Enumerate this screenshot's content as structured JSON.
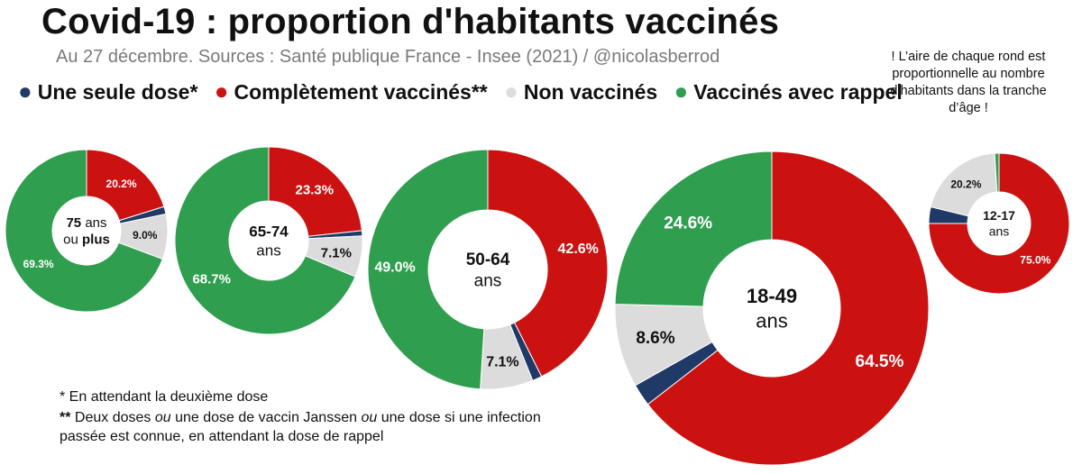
{
  "title": "Covid-19 : proportion d'habitants vaccinés",
  "subtitle": "Au 27 décembre. Sources : Santé publique France - Insee (2021) / @nicolasberrod",
  "note": "! L’aire de chaque rond est proportionnelle au nombre d’habitants dans la tranche d’âge !",
  "colors": {
    "one_dose": "#1f3a66",
    "complete": "#cc1111",
    "non_vaccinated": "#dcdcdc",
    "booster": "#2f9e4f"
  },
  "legend": [
    {
      "key": "one_dose",
      "label": "Une seule dose*",
      "color": "#1f3a66"
    },
    {
      "key": "complete",
      "label": "Complètement vaccinés**",
      "color": "#cc1111"
    },
    {
      "key": "non_vaccinated",
      "label": "Non vaccinés",
      "color": "#dcdcdc"
    },
    {
      "key": "booster",
      "label": "Vaccinés avec rappel",
      "color": "#2f9e4f"
    }
  ],
  "footnotes": {
    "one": "* En attendant la deuxième dose",
    "two_marker": "**",
    "two_part1": " Deux doses ",
    "two_ou1": "ou",
    "two_part2": " une dose de vaccin Janssen ",
    "two_ou2": "ou",
    "two_part3": " une dose si une infection passée est connue, en attendant la dose de rappel"
  },
  "chart_data": {
    "type": "pie",
    "variant": "donut",
    "series_order": [
      "complete",
      "one_dose",
      "non_vaccinated",
      "booster"
    ],
    "groups": [
      {
        "name": "75 ans ou plus",
        "center_lines": [
          "75 ans",
          "ou plus"
        ],
        "values": {
          "complete": 20.2,
          "one_dose": 1.5,
          "non_vaccinated": 9.0,
          "booster": 69.3
        },
        "labels": {
          "complete": "20.2%",
          "non_vaccinated": "9.0%",
          "booster": "69.3%"
        }
      },
      {
        "name": "65-74 ans",
        "center_lines": [
          "65-74",
          "ans"
        ],
        "values": {
          "complete": 23.3,
          "one_dose": 0.9,
          "non_vaccinated": 7.1,
          "booster": 68.7
        },
        "labels": {
          "complete": "23.3%",
          "non_vaccinated": "7.1%",
          "booster": "68.7%"
        }
      },
      {
        "name": "50-64 ans",
        "center_lines": [
          "50-64",
          "ans"
        ],
        "values": {
          "complete": 42.6,
          "one_dose": 1.3,
          "non_vaccinated": 7.1,
          "booster": 49.0
        },
        "labels": {
          "complete": "42.6%",
          "non_vaccinated": "7.1%",
          "booster": "49.0%"
        }
      },
      {
        "name": "18-49 ans",
        "center_lines": [
          "18-49",
          "ans"
        ],
        "values": {
          "complete": 64.5,
          "one_dose": 2.3,
          "non_vaccinated": 8.6,
          "booster": 24.6
        },
        "labels": {
          "complete": "64.5%",
          "non_vaccinated": "8.6%",
          "booster": "24.6%"
        }
      },
      {
        "name": "12-17 ans",
        "center_lines": [
          "12-17",
          "ans"
        ],
        "values": {
          "complete": 75.0,
          "one_dose": 3.8,
          "non_vaccinated": 20.2,
          "booster": 1.0
        },
        "labels": {
          "complete": "75.0%",
          "non_vaccinated": "20.2%"
        }
      }
    ]
  }
}
